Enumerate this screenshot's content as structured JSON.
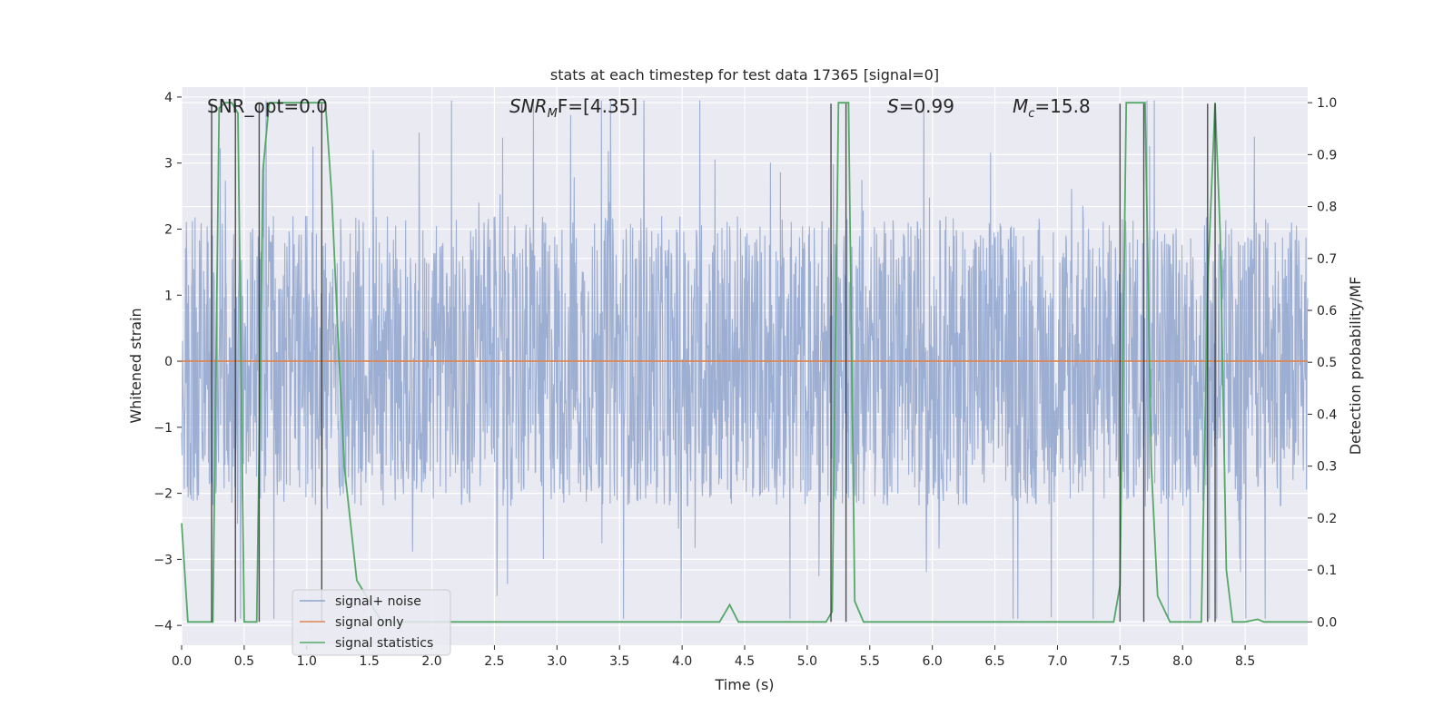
{
  "chart_data": {
    "type": "line",
    "title": "stats at each timestep for test data 17365 [signal=0]",
    "xlabel": "Time (s)",
    "ylabel_left": "Whitened strain",
    "ylabel_right": "Detection probability/MF",
    "xlim": [
      0.0,
      9.0
    ],
    "ylim_left": [
      -4.3,
      4.15
    ],
    "ylim_right": [
      -0.045,
      1.03
    ],
    "x_ticks": [
      "0.0",
      "0.5",
      "1.0",
      "1.5",
      "2.0",
      "2.5",
      "3.0",
      "3.5",
      "4.0",
      "4.5",
      "5.0",
      "5.5",
      "6.0",
      "6.5",
      "7.0",
      "7.5",
      "8.0",
      "8.5"
    ],
    "y_ticks_left": [
      "−4",
      "−3",
      "−2",
      "−1",
      "0",
      "1",
      "2",
      "3",
      "4"
    ],
    "y_ticks_right": [
      "0.0",
      "0.1",
      "0.2",
      "0.3",
      "0.4",
      "0.5",
      "0.6",
      "0.7",
      "0.8",
      "0.9",
      "1.0"
    ],
    "annotations": {
      "snr_opt": "SNR_opt=0.0",
      "snr_mf_sym": "SNR",
      "snr_mf_sub": "M",
      "snr_mf_rest": "F=[4.35]",
      "s_sym": "S",
      "s_rest": "=0.99",
      "mc_sym": "M",
      "mc_sub": "c",
      "mc_rest": "=15.8"
    },
    "legend": {
      "placement": "lower left",
      "entries": [
        "signal+ noise",
        "signal only",
        "signal statistics"
      ]
    },
    "series": [
      {
        "name": "signal+ noise",
        "axis": "left",
        "kind": "noise",
        "color": "#8ea3cc",
        "envelope_approx": 2.2,
        "values": []
      },
      {
        "name": "signal only",
        "axis": "left",
        "color": "#dd8452",
        "x": [
          0.0,
          9.0
        ],
        "values": [
          0.0,
          0.0
        ]
      },
      {
        "name": "signal statistics",
        "axis": "right",
        "color": "#55a868",
        "x": [
          0.0,
          0.05,
          0.1,
          0.25,
          0.3,
          0.35,
          0.4,
          0.45,
          0.5,
          0.55,
          0.6,
          0.65,
          0.7,
          0.75,
          1.0,
          1.1,
          1.15,
          1.2,
          1.25,
          1.3,
          1.4,
          1.6,
          1.8,
          2.0,
          2.1,
          2.2,
          3.0,
          4.0,
          4.3,
          4.38,
          4.45,
          5.0,
          5.15,
          5.2,
          5.25,
          5.3,
          5.33,
          5.38,
          5.45,
          6.0,
          7.0,
          7.45,
          7.5,
          7.55,
          7.6,
          7.65,
          7.7,
          7.75,
          7.8,
          7.9,
          8.0,
          8.15,
          8.2,
          8.26,
          8.3,
          8.35,
          8.4,
          8.5,
          8.6,
          8.65,
          8.7,
          9.0
        ],
        "values": [
          0.19,
          0.0,
          0.0,
          0.0,
          0.99,
          1.0,
          1.0,
          0.98,
          0.0,
          0.0,
          0.0,
          0.87,
          1.0,
          1.0,
          1.0,
          1.0,
          1.0,
          0.82,
          0.55,
          0.3,
          0.08,
          0.0,
          0.0,
          0.0,
          0.0,
          0.0,
          0.0,
          0.0,
          0.0,
          0.033,
          0.0,
          0.0,
          0.0,
          0.02,
          1.0,
          1.0,
          1.0,
          0.04,
          0.0,
          0.0,
          0.0,
          0.0,
          0.07,
          1.0,
          1.0,
          1.0,
          1.0,
          0.3,
          0.05,
          0.0,
          0.0,
          0.0,
          0.65,
          1.0,
          0.75,
          0.1,
          0.0,
          0.0,
          0.005,
          0.0,
          0.0,
          0.0
        ]
      }
    ],
    "markers": {
      "color": "#333333",
      "x": [
        0.24,
        0.43,
        0.62,
        1.12,
        5.19,
        5.31,
        7.5,
        7.69,
        8.2,
        8.26
      ],
      "y_top": 0.998
    },
    "grid": true,
    "background": "#eaeaf2"
  }
}
